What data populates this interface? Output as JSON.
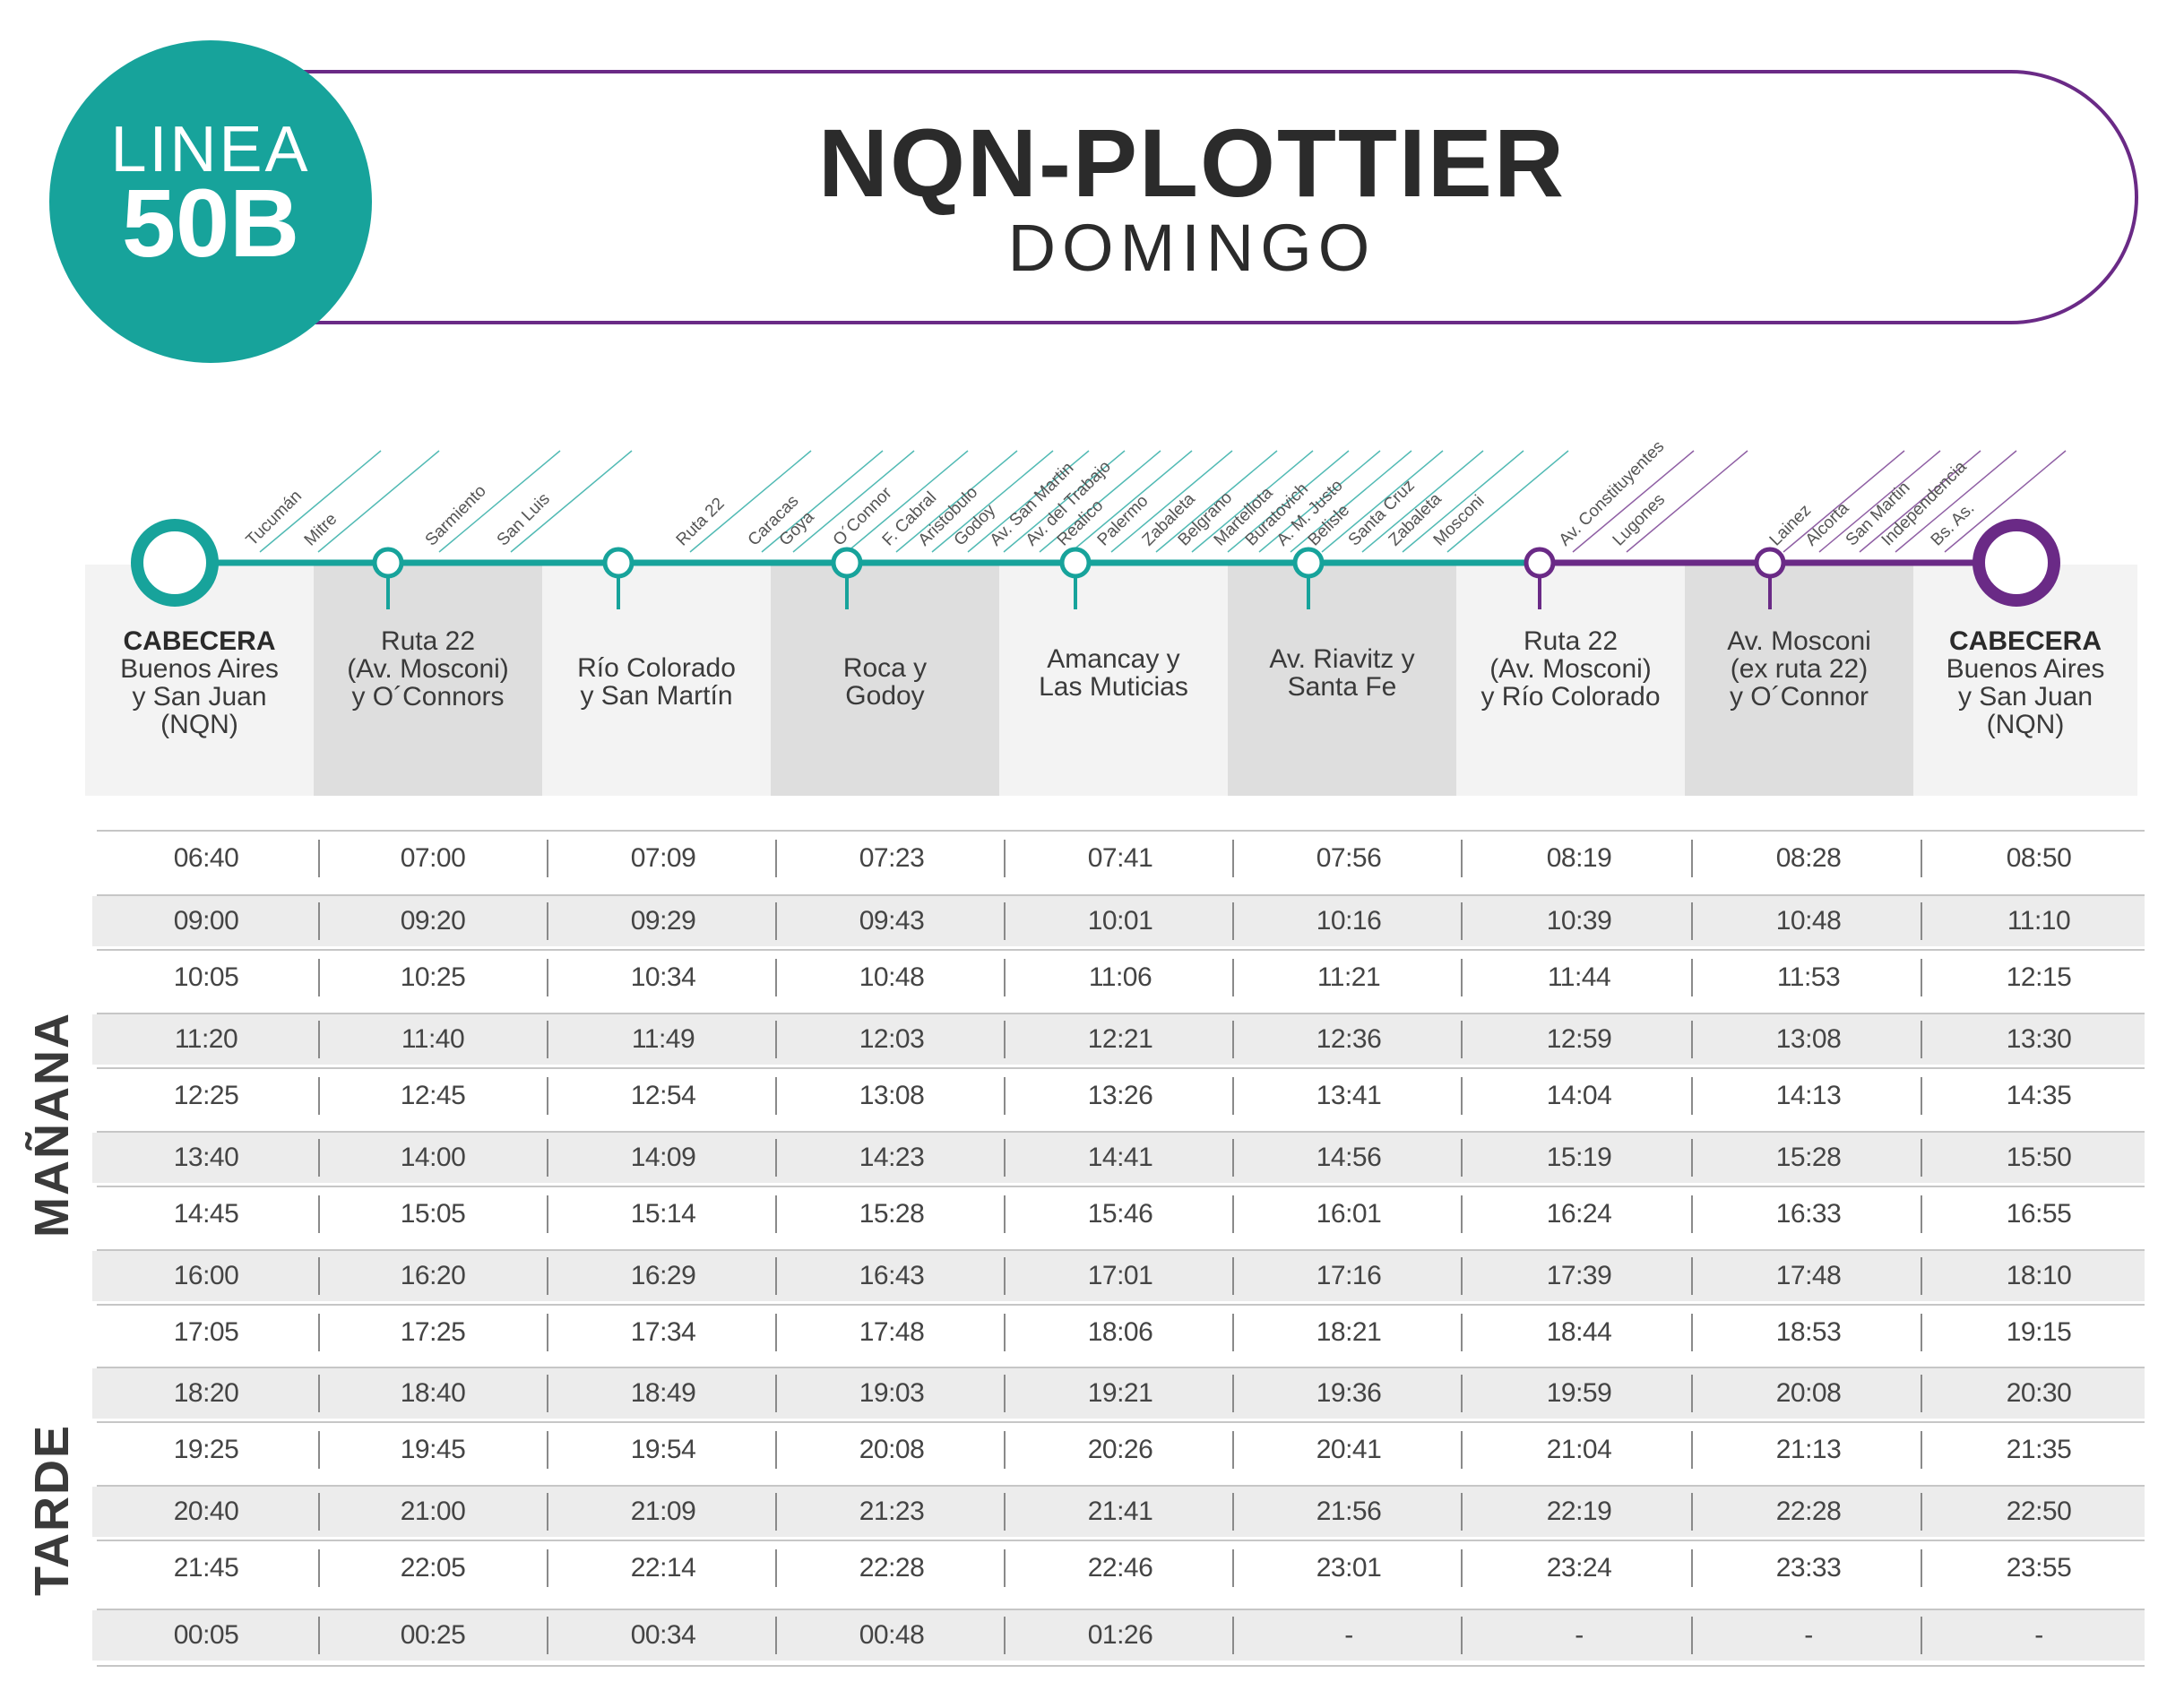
{
  "line": {
    "prefix": "LINEA",
    "number": "50B"
  },
  "title": "NQN-PLOTTIER",
  "subtitle": "DOMINGO",
  "colors": {
    "teal": "#17a39b",
    "purple": "#6a2a86"
  },
  "route": {
    "streets": [
      "Tucumán",
      "Mitre",
      "Sarmiento",
      "San Luis",
      "Ruta 22",
      "Caracas",
      "Goya",
      "O´Connor",
      "F. Cabral",
      "Aristobulo",
      "Godoy",
      "Av. San Martin",
      "Av. del Trabajo",
      "Realico",
      "Palermo",
      "Zabaleta",
      "Belgrano",
      "Martellota",
      "Buratovich",
      "A. M. Justo",
      "Belisle",
      "Santa Cruz",
      "Zabaleta",
      "Mosconi",
      "Av. Constituyentes",
      "Lugones",
      "Lainez",
      "Alcorta",
      "San Martin",
      "Independencia",
      "Bs. As."
    ],
    "stops": [
      {
        "bold": "CABECERA",
        "label": "Buenos Aires\ny San Juan\n(NQN)"
      },
      {
        "bold": "",
        "label": "Ruta 22\n(Av. Mosconi)\ny O´Connors"
      },
      {
        "bold": "",
        "label": "Río Colorado\ny San Martín"
      },
      {
        "bold": "",
        "label": "Roca y\nGodoy"
      },
      {
        "bold": "",
        "label": "Amancay y\nLas Muticias"
      },
      {
        "bold": "",
        "label": "Av. Riavitz y\nSanta Fe"
      },
      {
        "bold": "",
        "label": "Ruta 22\n(Av. Mosconi)\ny Río Colorado"
      },
      {
        "bold": "",
        "label": "Av. Mosconi\n(ex ruta 22)\ny O´Connor"
      },
      {
        "bold": "CABECERA",
        "label": "Buenos Aires\ny San Juan\n(NQN)"
      }
    ]
  },
  "sections": {
    "morning": "MAÑANA",
    "afternoon": "TARDE"
  },
  "schedule": [
    [
      "06:40",
      "07:00",
      "07:09",
      "07:23",
      "07:41",
      "07:56",
      "08:19",
      "08:28",
      "08:50"
    ],
    [
      "09:00",
      "09:20",
      "09:29",
      "09:43",
      "10:01",
      "10:16",
      "10:39",
      "10:48",
      "11:10"
    ],
    [
      "10:05",
      "10:25",
      "10:34",
      "10:48",
      "11:06",
      "11:21",
      "11:44",
      "11:53",
      "12:15"
    ],
    [
      "11:20",
      "11:40",
      "11:49",
      "12:03",
      "12:21",
      "12:36",
      "12:59",
      "13:08",
      "13:30"
    ],
    [
      "12:25",
      "12:45",
      "12:54",
      "13:08",
      "13:26",
      "13:41",
      "14:04",
      "14:13",
      "14:35"
    ],
    [
      "13:40",
      "14:00",
      "14:09",
      "14:23",
      "14:41",
      "14:56",
      "15:19",
      "15:28",
      "15:50"
    ],
    [
      "14:45",
      "15:05",
      "15:14",
      "15:28",
      "15:46",
      "16:01",
      "16:24",
      "16:33",
      "16:55"
    ],
    [
      "16:00",
      "16:20",
      "16:29",
      "16:43",
      "17:01",
      "17:16",
      "17:39",
      "17:48",
      "18:10"
    ],
    [
      "17:05",
      "17:25",
      "17:34",
      "17:48",
      "18:06",
      "18:21",
      "18:44",
      "18:53",
      "19:15"
    ],
    [
      "18:20",
      "18:40",
      "18:49",
      "19:03",
      "19:21",
      "19:36",
      "19:59",
      "20:08",
      "20:30"
    ],
    [
      "19:25",
      "19:45",
      "19:54",
      "20:08",
      "20:26",
      "20:41",
      "21:04",
      "21:13",
      "21:35"
    ],
    [
      "20:40",
      "21:00",
      "21:09",
      "21:23",
      "21:41",
      "21:56",
      "22:19",
      "22:28",
      "22:50"
    ],
    [
      "21:45",
      "22:05",
      "22:14",
      "22:28",
      "22:46",
      "23:01",
      "23:24",
      "23:33",
      "23:55"
    ],
    [
      "00:05",
      "00:25",
      "00:34",
      "00:48",
      "01:26",
      "-",
      "-",
      "-",
      "-"
    ]
  ]
}
